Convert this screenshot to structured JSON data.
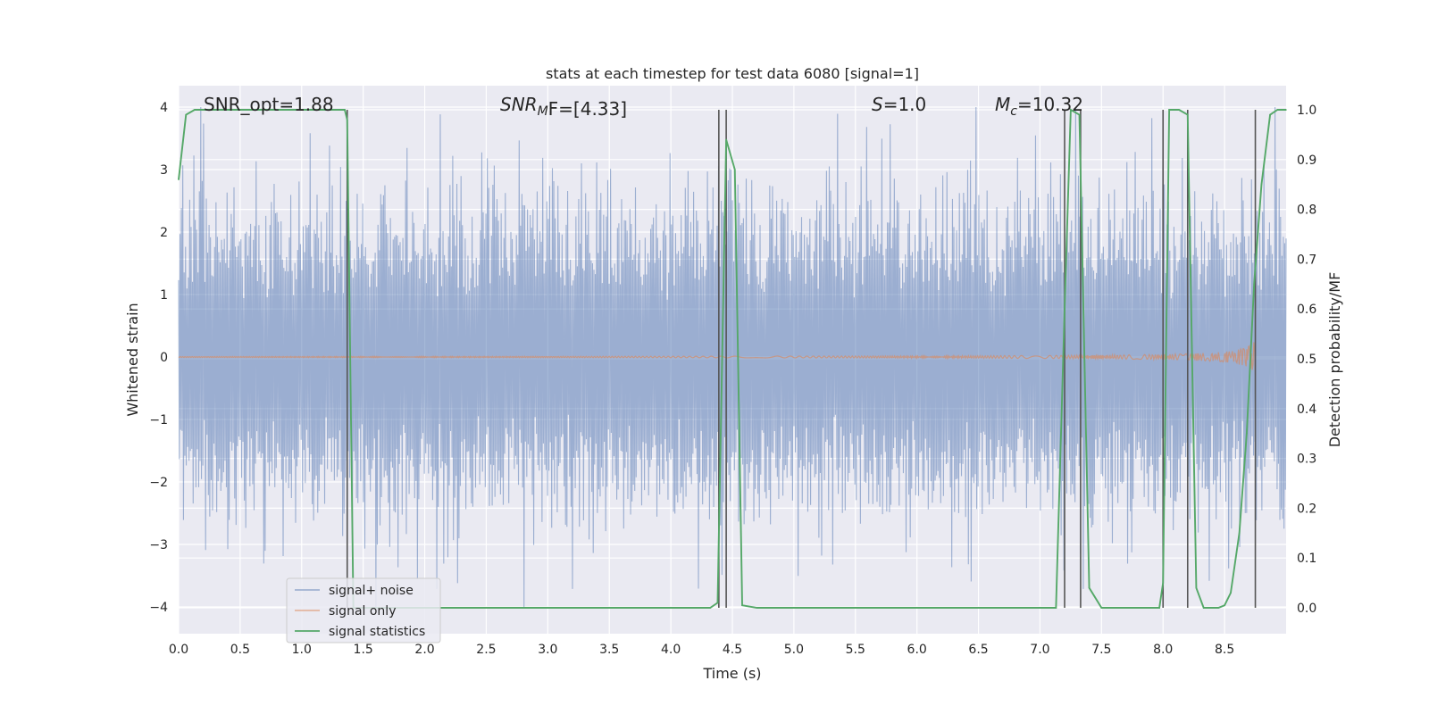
{
  "chart_data": {
    "type": "line",
    "title": "stats at each timestep for test data 6080 [signal=1]",
    "xlabel": "Time (s)",
    "ylabel": "Whitened strain",
    "y2label": "Detection probability/MF",
    "xlim": [
      0.0,
      9.0
    ],
    "ylim": [
      -4.35,
      4.35
    ],
    "y2lim": [
      -0.047,
      1.045
    ],
    "xticks": [
      "0.0",
      "0.5",
      "1.0",
      "1.5",
      "2.0",
      "2.5",
      "3.0",
      "3.5",
      "4.0",
      "4.5",
      "5.0",
      "5.5",
      "6.0",
      "6.5",
      "7.0",
      "7.5",
      "8.0",
      "8.5"
    ],
    "yticks": [
      "4",
      "3",
      "2",
      "1",
      "0",
      "−1",
      "−2",
      "−3",
      "−4"
    ],
    "y2ticks": [
      "1.0",
      "0.9",
      "0.8",
      "0.7",
      "0.6",
      "0.5",
      "0.4",
      "0.3",
      "0.2",
      "0.1",
      "0.0"
    ],
    "grid": true,
    "legend_position": "lower-left",
    "colors": {
      "signal_noise": "#4c72b0",
      "signal_only": "#dd8452",
      "signal_statistics": "#55a868",
      "vlines": "#555555",
      "background": "#eaeaf2",
      "grid": "#ffffff"
    },
    "annotations": {
      "snr_opt": "SNR_opt=1.88",
      "snr_mf_main": "SNR",
      "snr_mf_sub": "M",
      "snr_mf_rest": "F=[4.33]",
      "s_main": "S",
      "s_rest": "=1.0",
      "mc_main": "M",
      "mc_sub": "c",
      "mc_rest": "=10.32"
    },
    "series": [
      {
        "name": "signal+ noise",
        "style": "noise band",
        "y_range": [
          -4.0,
          4.0
        ],
        "typical_abs": 1.6
      },
      {
        "name": "signal only",
        "style": "chirp",
        "chirp_end_time": 8.75,
        "peak_amplitude": 0.3
      },
      {
        "name": "signal statistics",
        "axis": "right",
        "x": [
          0.0,
          0.06,
          0.13,
          0.2,
          0.3,
          0.5,
          0.8,
          1.0,
          1.2,
          1.3,
          1.35,
          1.37,
          1.42,
          1.45,
          2.0,
          3.0,
          4.0,
          4.32,
          4.38,
          4.45,
          4.52,
          4.58,
          4.7,
          5.0,
          6.0,
          7.0,
          7.13,
          7.2,
          7.25,
          7.32,
          7.4,
          7.5,
          7.6,
          7.9,
          7.97,
          8.0,
          8.05,
          8.13,
          8.2,
          8.27,
          8.33,
          8.4,
          8.45,
          8.5,
          8.55,
          8.62,
          8.68,
          8.74,
          8.8,
          8.87,
          8.93,
          9.0
        ],
        "values": [
          0.86,
          0.99,
          1.0,
          1.0,
          1.0,
          1.0,
          1.0,
          1.0,
          1.0,
          1.0,
          1.0,
          0.98,
          0.0,
          0.0,
          0.0,
          0.0,
          0.0,
          0.0,
          0.01,
          0.94,
          0.88,
          0.005,
          0.0,
          0.0,
          0.0,
          0.0,
          0.0,
          0.6,
          1.0,
          0.99,
          0.04,
          0.0,
          0.0,
          0.0,
          0.0,
          0.05,
          1.0,
          1.0,
          0.99,
          0.04,
          0.0,
          0.0,
          0.0,
          0.005,
          0.03,
          0.15,
          0.35,
          0.65,
          0.85,
          0.99,
          1.0,
          1.0
        ]
      }
    ],
    "vlines_x": [
      1.37,
      4.39,
      4.45,
      7.2,
      7.33,
      8.0,
      8.2,
      8.75
    ]
  },
  "legend": {
    "items": [
      {
        "label": "signal+ noise"
      },
      {
        "label": "signal only"
      },
      {
        "label": "signal statistics"
      }
    ]
  }
}
